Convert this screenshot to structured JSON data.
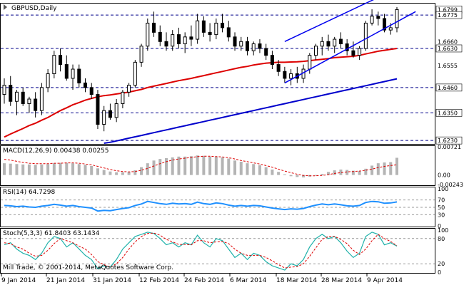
{
  "watermark": "Mill Trade, © 2001-2014, MetaQuotes Software Corp.",
  "colors": {
    "bull_candle": "#ffffff",
    "bear_candle": "#000000",
    "ma_short": "#dd0000",
    "ma_long": "#0000cc",
    "channel": "#0000ee",
    "hline": "#00008b",
    "macd_hist": "#b4b4b4",
    "macd_signal": "#dd0000",
    "rsi": "#1e90ff",
    "stoch_main": "#20b2aa",
    "stoch_signal": "#dd0000"
  },
  "chart_data": [
    {
      "type": "candlestick",
      "title": "GBPUSD,Daily",
      "x_dates": [
        "9 Jan 2014",
        "21 Jan 2014",
        "31 Jan 2014",
        "12 Feb 2014",
        "24 Feb 2014",
        "6 Mar 2014",
        "18 Mar 2014",
        "28 Mar 2014",
        "9 Apr 2014"
      ],
      "ylim": [
        1.6215,
        1.6825
      ],
      "levels": [
        1.6775,
        1.663,
        1.646,
        1.635,
        1.623
      ],
      "level_labels": [
        "1.6775",
        "1.6630",
        "1.6460",
        "1.6350",
        "1.6230"
      ],
      "price_labels": [
        "1.6799",
        "1.6775",
        "1.6660",
        "1.6630",
        "1.6555",
        "1.6460",
        "1.6350",
        "1.6230"
      ],
      "current_price": 1.6799,
      "candles": [
        {
          "o": 1.643,
          "h": 1.65,
          "l": 1.639,
          "c": 1.647
        },
        {
          "o": 1.647,
          "h": 1.651,
          "l": 1.638,
          "c": 1.64
        },
        {
          "o": 1.64,
          "h": 1.645,
          "l": 1.634,
          "c": 1.644
        },
        {
          "o": 1.644,
          "h": 1.646,
          "l": 1.638,
          "c": 1.639
        },
        {
          "o": 1.639,
          "h": 1.642,
          "l": 1.635,
          "c": 1.641
        },
        {
          "o": 1.641,
          "h": 1.644,
          "l": 1.633,
          "c": 1.636
        },
        {
          "o": 1.636,
          "h": 1.648,
          "l": 1.634,
          "c": 1.646
        },
        {
          "o": 1.646,
          "h": 1.654,
          "l": 1.644,
          "c": 1.652
        },
        {
          "o": 1.652,
          "h": 1.662,
          "l": 1.65,
          "c": 1.66
        },
        {
          "o": 1.66,
          "h": 1.663,
          "l": 1.653,
          "c": 1.656
        },
        {
          "o": 1.656,
          "h": 1.66,
          "l": 1.649,
          "c": 1.65
        },
        {
          "o": 1.65,
          "h": 1.656,
          "l": 1.645,
          "c": 1.654
        },
        {
          "o": 1.654,
          "h": 1.656,
          "l": 1.646,
          "c": 1.648
        },
        {
          "o": 1.648,
          "h": 1.65,
          "l": 1.644,
          "c": 1.646
        },
        {
          "o": 1.646,
          "h": 1.648,
          "l": 1.641,
          "c": 1.643
        },
        {
          "o": 1.643,
          "h": 1.645,
          "l": 1.628,
          "c": 1.63
        },
        {
          "o": 1.63,
          "h": 1.638,
          "l": 1.627,
          "c": 1.636
        },
        {
          "o": 1.636,
          "h": 1.639,
          "l": 1.632,
          "c": 1.633
        },
        {
          "o": 1.633,
          "h": 1.641,
          "l": 1.631,
          "c": 1.639
        },
        {
          "o": 1.639,
          "h": 1.645,
          "l": 1.637,
          "c": 1.644
        },
        {
          "o": 1.644,
          "h": 1.648,
          "l": 1.642,
          "c": 1.647
        },
        {
          "o": 1.647,
          "h": 1.658,
          "l": 1.646,
          "c": 1.657
        },
        {
          "o": 1.657,
          "h": 1.665,
          "l": 1.655,
          "c": 1.664
        },
        {
          "o": 1.664,
          "h": 1.676,
          "l": 1.662,
          "c": 1.674
        },
        {
          "o": 1.674,
          "h": 1.679,
          "l": 1.668,
          "c": 1.67
        },
        {
          "o": 1.67,
          "h": 1.673,
          "l": 1.664,
          "c": 1.666
        },
        {
          "o": 1.666,
          "h": 1.67,
          "l": 1.662,
          "c": 1.664
        },
        {
          "o": 1.664,
          "h": 1.671,
          "l": 1.662,
          "c": 1.669
        },
        {
          "o": 1.669,
          "h": 1.672,
          "l": 1.663,
          "c": 1.665
        },
        {
          "o": 1.665,
          "h": 1.67,
          "l": 1.661,
          "c": 1.668
        },
        {
          "o": 1.668,
          "h": 1.673,
          "l": 1.664,
          "c": 1.667
        },
        {
          "o": 1.667,
          "h": 1.678,
          "l": 1.665,
          "c": 1.675
        },
        {
          "o": 1.675,
          "h": 1.677,
          "l": 1.668,
          "c": 1.67
        },
        {
          "o": 1.67,
          "h": 1.674,
          "l": 1.666,
          "c": 1.669
        },
        {
          "o": 1.669,
          "h": 1.676,
          "l": 1.667,
          "c": 1.674
        },
        {
          "o": 1.674,
          "h": 1.678,
          "l": 1.67,
          "c": 1.672
        },
        {
          "o": 1.672,
          "h": 1.675,
          "l": 1.666,
          "c": 1.668
        },
        {
          "o": 1.668,
          "h": 1.67,
          "l": 1.662,
          "c": 1.664
        },
        {
          "o": 1.664,
          "h": 1.668,
          "l": 1.662,
          "c": 1.666
        },
        {
          "o": 1.666,
          "h": 1.668,
          "l": 1.66,
          "c": 1.662
        },
        {
          "o": 1.662,
          "h": 1.666,
          "l": 1.66,
          "c": 1.665
        },
        {
          "o": 1.665,
          "h": 1.667,
          "l": 1.661,
          "c": 1.663
        },
        {
          "o": 1.663,
          "h": 1.665,
          "l": 1.658,
          "c": 1.66
        },
        {
          "o": 1.66,
          "h": 1.662,
          "l": 1.654,
          "c": 1.656
        },
        {
          "o": 1.656,
          "h": 1.658,
          "l": 1.651,
          "c": 1.653
        },
        {
          "o": 1.653,
          "h": 1.655,
          "l": 1.648,
          "c": 1.65
        },
        {
          "o": 1.65,
          "h": 1.654,
          "l": 1.647,
          "c": 1.652
        },
        {
          "o": 1.652,
          "h": 1.655,
          "l": 1.648,
          "c": 1.65
        },
        {
          "o": 1.65,
          "h": 1.656,
          "l": 1.648,
          "c": 1.654
        },
        {
          "o": 1.654,
          "h": 1.661,
          "l": 1.652,
          "c": 1.66
        },
        {
          "o": 1.66,
          "h": 1.665,
          "l": 1.658,
          "c": 1.664
        },
        {
          "o": 1.664,
          "h": 1.668,
          "l": 1.66,
          "c": 1.666
        },
        {
          "o": 1.666,
          "h": 1.669,
          "l": 1.662,
          "c": 1.664
        },
        {
          "o": 1.664,
          "h": 1.668,
          "l": 1.661,
          "c": 1.667
        },
        {
          "o": 1.667,
          "h": 1.67,
          "l": 1.663,
          "c": 1.665
        },
        {
          "o": 1.665,
          "h": 1.667,
          "l": 1.66,
          "c": 1.662
        },
        {
          "o": 1.662,
          "h": 1.666,
          "l": 1.659,
          "c": 1.66
        },
        {
          "o": 1.66,
          "h": 1.664,
          "l": 1.658,
          "c": 1.663
        },
        {
          "o": 1.663,
          "h": 1.675,
          "l": 1.662,
          "c": 1.674
        },
        {
          "o": 1.674,
          "h": 1.68,
          "l": 1.673,
          "c": 1.677
        },
        {
          "o": 1.677,
          "h": 1.679,
          "l": 1.673,
          "c": 1.676
        },
        {
          "o": 1.676,
          "h": 1.678,
          "l": 1.67,
          "c": 1.671
        },
        {
          "o": 1.671,
          "h": 1.674,
          "l": 1.669,
          "c": 1.672
        },
        {
          "o": 1.672,
          "h": 1.681,
          "l": 1.67,
          "c": 1.6799
        }
      ],
      "ma_short": [
        1.6245,
        1.6258,
        1.627,
        1.6282,
        1.6295,
        1.6305,
        1.6318,
        1.633,
        1.6345,
        1.636,
        1.6372,
        1.6385,
        1.6395,
        1.6405,
        1.6413,
        1.642,
        1.6425,
        1.6428,
        1.6432,
        1.6436,
        1.644,
        1.6446,
        1.6452,
        1.646,
        1.6466,
        1.6472,
        1.6478,
        1.6484,
        1.649,
        1.6495,
        1.65,
        1.6506,
        1.6512,
        1.6518,
        1.6524,
        1.653,
        1.6536,
        1.6542,
        1.6548,
        1.6552,
        1.6558,
        1.6562,
        1.6566,
        1.6568,
        1.657,
        1.657,
        1.6571,
        1.6572,
        1.6574,
        1.6577,
        1.658,
        1.6583,
        1.6586,
        1.659,
        1.6592,
        1.6594,
        1.6596,
        1.66,
        1.6606,
        1.6612,
        1.6618,
        1.6622,
        1.6626,
        1.663
      ],
      "ma_long": [
        null,
        null,
        null,
        null,
        null,
        null,
        null,
        null,
        null,
        null,
        null,
        null,
        null,
        null,
        null,
        null,
        1.6218,
        1.6222,
        1.6228,
        1.6234,
        1.624,
        1.6246,
        1.6252,
        1.6258,
        1.6264,
        1.627,
        1.6276,
        1.6282,
        1.6288,
        1.6294,
        1.63,
        1.6306,
        1.6312,
        1.6318,
        1.6324,
        1.633,
        1.6336,
        1.6342,
        1.6348,
        1.6354,
        1.636,
        1.6366,
        1.6372,
        1.6378,
        1.6384,
        1.639,
        1.6396,
        1.6402,
        1.6408,
        1.6414,
        1.642,
        1.6426,
        1.6432,
        1.6438,
        1.6444,
        1.645,
        1.6456,
        1.6462,
        1.6468,
        1.6474,
        1.648,
        1.6486,
        1.6492,
        1.6498
      ],
      "channel": [
        {
          "x1": 45,
          "y1": 1.666,
          "x2": 63,
          "y2": 1.689
        },
        {
          "x1": 45,
          "y1": 1.648,
          "x2": 66,
          "y2": 1.679
        }
      ]
    },
    {
      "type": "bar",
      "title": "MACD(12,26,9) 0.00438 0.00255",
      "ylim": [
        -0.00243,
        0.00721
      ],
      "tick_labels": [
        "0.00721",
        "0.00",
        "-0.00243"
      ],
      "histogram": [
        0.003,
        0.0029,
        0.0028,
        0.0027,
        0.0027,
        0.0026,
        0.0027,
        0.0028,
        0.003,
        0.0031,
        0.0031,
        0.003,
        0.0028,
        0.0026,
        0.0023,
        0.0017,
        0.0013,
        0.0009,
        0.0007,
        0.0007,
        0.0008,
        0.0012,
        0.002,
        0.003,
        0.0037,
        0.0041,
        0.0043,
        0.0045,
        0.0047,
        0.0047,
        0.0048,
        0.005,
        0.0049,
        0.0047,
        0.0047,
        0.0045,
        0.0042,
        0.0037,
        0.0034,
        0.003,
        0.0028,
        0.0025,
        0.002,
        0.0014,
        0.0008,
        0.0002,
        -0.0003,
        -0.0005,
        -0.0006,
        -0.0004,
        -0.0001,
        0.0003,
        0.0008,
        0.0012,
        0.0014,
        0.0013,
        0.0011,
        0.001,
        0.0016,
        0.0024,
        0.003,
        0.0032,
        0.0033,
        0.0044
      ],
      "signal": [
        0.004,
        0.0038,
        0.0035,
        0.0032,
        0.003,
        0.0029,
        0.0029,
        0.0029,
        0.003,
        0.003,
        0.0031,
        0.0031,
        0.003,
        0.0028,
        0.0026,
        0.0022,
        0.0018,
        0.0014,
        0.0011,
        0.0009,
        0.0008,
        0.0009,
        0.0012,
        0.0017,
        0.0023,
        0.0029,
        0.0034,
        0.0038,
        0.0041,
        0.0043,
        0.0045,
        0.0047,
        0.0048,
        0.0048,
        0.0047,
        0.0046,
        0.0044,
        0.0041,
        0.0037,
        0.0034,
        0.0031,
        0.0028,
        0.0024,
        0.002,
        0.0015,
        0.001,
        0.0006,
        0.0002,
        -0.0001,
        -0.0002,
        -0.0002,
        -0.0001,
        0.0001,
        0.0004,
        0.0006,
        0.0008,
        0.0009,
        0.001,
        0.0012,
        0.0015,
        0.0019,
        0.0022,
        0.0024,
        0.0026
      ]
    },
    {
      "type": "line",
      "title": "RSI(14) 64.7298",
      "ylim": [
        0,
        100
      ],
      "tick_labels": [
        "100",
        "70",
        "50",
        "30",
        "0"
      ],
      "levels": [
        70,
        50,
        30
      ],
      "values": [
        55,
        54,
        52,
        53,
        51,
        50,
        53,
        55,
        58,
        56,
        53,
        55,
        52,
        50,
        48,
        40,
        42,
        41,
        44,
        47,
        49,
        55,
        59,
        66,
        63,
        60,
        58,
        61,
        59,
        60,
        58,
        64,
        60,
        58,
        62,
        60,
        56,
        53,
        55,
        53,
        55,
        54,
        51,
        48,
        46,
        44,
        46,
        45,
        47,
        52,
        56,
        59,
        57,
        59,
        57,
        54,
        53,
        55,
        63,
        66,
        65,
        61,
        62,
        64.7
      ]
    },
    {
      "type": "line",
      "title": "Stoch(5,3,3) 61.8403 63.1434",
      "ylim": [
        0,
        100
      ],
      "tick_labels": [
        "100",
        "80",
        "20",
        "0"
      ],
      "levels": [
        80,
        20
      ],
      "main": [
        65,
        70,
        55,
        45,
        40,
        30,
        45,
        70,
        85,
        80,
        60,
        70,
        55,
        40,
        30,
        8,
        15,
        12,
        30,
        55,
        70,
        85,
        90,
        95,
        92,
        80,
        65,
        70,
        60,
        70,
        65,
        88,
        70,
        60,
        80,
        75,
        55,
        35,
        45,
        30,
        45,
        40,
        25,
        15,
        10,
        5,
        20,
        15,
        30,
        60,
        80,
        90,
        80,
        85,
        70,
        50,
        35,
        45,
        85,
        95,
        90,
        65,
        70,
        61.8
      ],
      "signal": [
        70,
        68,
        60,
        55,
        45,
        38,
        40,
        52,
        68,
        80,
        75,
        70,
        62,
        55,
        42,
        25,
        18,
        12,
        20,
        35,
        55,
        72,
        85,
        92,
        93,
        88,
        78,
        72,
        66,
        66,
        65,
        75,
        75,
        70,
        72,
        73,
        68,
        55,
        45,
        40,
        40,
        40,
        35,
        27,
        18,
        10,
        12,
        13,
        20,
        38,
        58,
        78,
        85,
        85,
        78,
        68,
        52,
        42,
        55,
        75,
        90,
        80,
        73,
        63.1
      ]
    }
  ]
}
